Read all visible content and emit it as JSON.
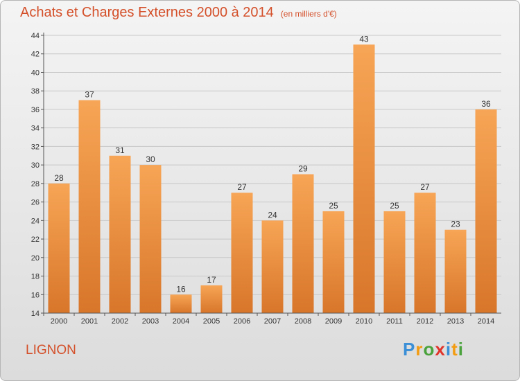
{
  "header": {
    "title": "Achats et Charges Externes 2000 à 2014",
    "unit": "(en milliers d'€)"
  },
  "footer": {
    "place": "LIGNON",
    "brand": "Proxiti",
    "brand_letters": [
      {
        "ch": "P",
        "color": "#3a8fd6"
      },
      {
        "ch": "r",
        "color": "#f39c12"
      },
      {
        "ch": "o",
        "color": "#4aa23c"
      },
      {
        "ch": "x",
        "color": "#e0342b"
      },
      {
        "ch": "i",
        "color": "#3a8fd6"
      },
      {
        "ch": "t",
        "color": "#f39c12"
      },
      {
        "ch": "i",
        "color": "#4aa23c"
      }
    ]
  },
  "colors": {
    "title": "#d4502a",
    "bar_light": "#f7a556",
    "bar_dark": "#d8762a",
    "grid": "#c8c8c8"
  },
  "chart_data": {
    "type": "bar",
    "title": "Achats et Charges Externes 2000 à 2014",
    "ylabel": "(en milliers d'€)",
    "categories": [
      "2000",
      "2001",
      "2002",
      "2003",
      "2004",
      "2005",
      "2006",
      "2007",
      "2008",
      "2009",
      "2010",
      "2011",
      "2012",
      "2013",
      "2014"
    ],
    "values": [
      28,
      37,
      31,
      30,
      16,
      17,
      27,
      24,
      29,
      25,
      43,
      25,
      27,
      23,
      36
    ],
    "ylim": [
      14,
      44
    ],
    "yticks": [
      14,
      16,
      18,
      20,
      22,
      24,
      26,
      28,
      30,
      32,
      34,
      36,
      38,
      40,
      42,
      44
    ],
    "grid": true
  }
}
